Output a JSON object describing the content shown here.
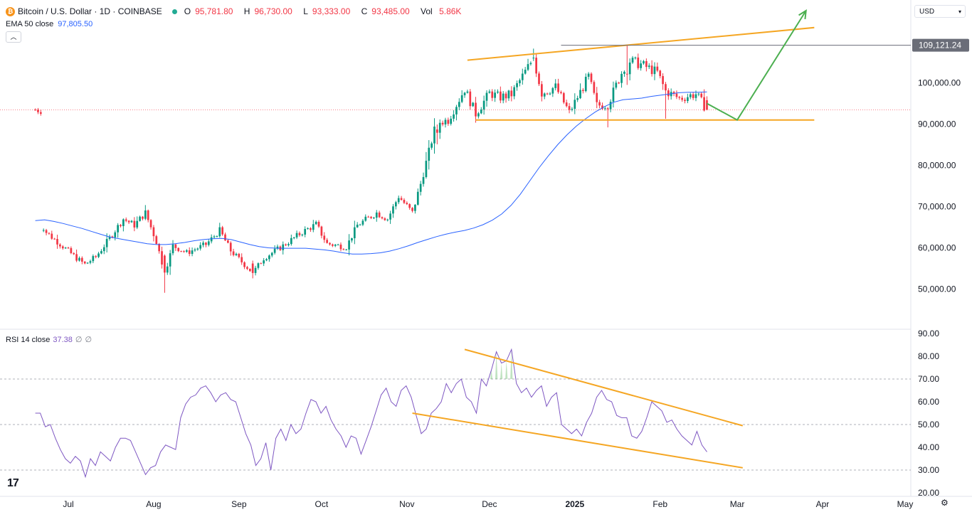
{
  "header": {
    "symbol_title": "Bitcoin / U.S. Dollar · 1D · COINBASE",
    "open_label": "O",
    "open": "95,781.80",
    "high_label": "H",
    "high": "96,730.00",
    "low_label": "L",
    "low": "93,333.00",
    "close_label": "C",
    "close": "93,485.00",
    "vol_label": "Vol",
    "vol": "5.86K",
    "ema_label": "EMA 50 close",
    "ema_value": "97,805.50",
    "currency": "USD",
    "rsi_label": "RSI 14 close",
    "rsi_value": "37.38",
    "rsi_extra1": "∅",
    "rsi_extra2": "∅",
    "logo_text": "17"
  },
  "colors": {
    "up": "#089981",
    "down": "#f23645",
    "ema": "#2962ff",
    "rsi": "#7e57c2",
    "trendline": "#f5a623",
    "projection": "#4caf50",
    "resistance": "#6a6d78"
  },
  "chart_data": {
    "type": "candlestick",
    "title": "Bitcoin / U.S. Dollar · 1D · COINBASE",
    "x_ticks": [
      "Jul",
      "Aug",
      "Sep",
      "Oct",
      "Nov",
      "Dec",
      "2025",
      "Feb",
      "Mar",
      "Apr",
      "May"
    ],
    "price_axis": {
      "ylim": [
        38000,
        119000
      ],
      "ticks": [
        "100,000.00",
        "90,000.00",
        "80,000.00",
        "70,000.00",
        "60,000.00",
        "50,000.00"
      ],
      "last_price_marker": "109,121.24",
      "last_price_marker_value": 109121.24,
      "resistance_label_hidden": "109,121.24"
    },
    "ema50_close": [
      66600,
      66800,
      66400,
      65900,
      65300,
      64700,
      64000,
      63300,
      62600,
      62200,
      61800,
      61400,
      61000,
      60800,
      60800,
      61000,
      61300,
      61700,
      62000,
      62200,
      62300,
      62000,
      61400,
      60800,
      60300,
      60000,
      59900,
      59900,
      59900,
      59900,
      59700,
      59500,
      59200,
      58800,
      58500,
      58500,
      58600,
      58800,
      59200,
      59800,
      60500,
      61300,
      62000,
      62700,
      63300,
      63800,
      64200,
      64800,
      65600,
      66700,
      68200,
      70300,
      73000,
      76200,
      79400,
      82300,
      85000,
      87400,
      89500,
      91300,
      92900,
      94200,
      95300,
      95900,
      96100,
      96300,
      96700,
      97000,
      97300,
      97600,
      97700,
      97700,
      97805.5
    ],
    "ema50_dates_step_days": 3.3,
    "candles_ohlc_sample": [
      {
        "date": "2024-06-22",
        "o": 64200,
        "h": 64700,
        "l": 63800,
        "c": 64300
      },
      {
        "date": "2024-08-05",
        "o": 58100,
        "h": 58400,
        "l": 49100,
        "c": 54000
      },
      {
        "date": "2024-09-06",
        "o": 56200,
        "h": 56900,
        "l": 52600,
        "c": 53900
      },
      {
        "date": "2024-11-12",
        "o": 88700,
        "h": 89900,
        "l": 85100,
        "c": 87900
      },
      {
        "date": "2024-12-17",
        "o": 106100,
        "h": 108300,
        "l": 105300,
        "c": 106100
      },
      {
        "date": "2025-01-20",
        "o": 102200,
        "h": 109121.24,
        "l": 99500,
        "c": 102100
      },
      {
        "date": "2025-02-18",
        "o": 95781.8,
        "h": 96730,
        "l": 93333,
        "c": 93485
      }
    ],
    "annotations": [
      {
        "type": "rising_resistance_line",
        "from": {
          "date": "2024-11-23",
          "price": 105500
        },
        "to": {
          "date": "2025-03-29",
          "price": 113400
        }
      },
      {
        "type": "horizontal_support",
        "price": 91000,
        "from": "2024-11-26",
        "to": "2025-03-29"
      },
      {
        "type": "horizontal_level",
        "price": 109121.24,
        "from": "2024-12-27",
        "to": "axis"
      },
      {
        "type": "projection_arrow",
        "points": [
          {
            "date": "2025-02-18",
            "price": 95000
          },
          {
            "date": "2025-03-01",
            "price": 91000
          },
          {
            "date": "2025-03-26",
            "price": 117500
          }
        ]
      }
    ],
    "rsi": {
      "label": "RSI 14 close",
      "ylim": [
        19,
        91
      ],
      "ticks": [
        "90.00",
        "80.00",
        "70.00",
        "60.00",
        "50.00",
        "40.00",
        "30.00",
        "20.00"
      ],
      "levels": [
        70,
        50,
        30
      ],
      "last": 37.38,
      "values": [
        55,
        55,
        49,
        50,
        44,
        39,
        35,
        33,
        36,
        34,
        27,
        35,
        32,
        38,
        36,
        34,
        40,
        44,
        44,
        43,
        38,
        33,
        28,
        31,
        32,
        38,
        41,
        40,
        39,
        53,
        59,
        62,
        63,
        66,
        67,
        64,
        60,
        63,
        64,
        61,
        60,
        53,
        46,
        41,
        32,
        35,
        42,
        30,
        44,
        48,
        43,
        50,
        46,
        48,
        55,
        61,
        60,
        55,
        58,
        52,
        48,
        45,
        40,
        45,
        44,
        37,
        43,
        49,
        56,
        63,
        66,
        60,
        58,
        65,
        67,
        62,
        54,
        46,
        48,
        55,
        57,
        60,
        68,
        64,
        68,
        70,
        62,
        60,
        55,
        70,
        67,
        74,
        82,
        77,
        78,
        83,
        68,
        64,
        66,
        62,
        65,
        67,
        58,
        62,
        64,
        50,
        48,
        46,
        48,
        45,
        51,
        55,
        62,
        65,
        61,
        60,
        54,
        53,
        53,
        45,
        44,
        47,
        53,
        60,
        58,
        56,
        51,
        52,
        48,
        45,
        43,
        41,
        47,
        41,
        38
      ]
    },
    "rsi_trendlines": [
      {
        "from": {
          "date": "2024-11-22",
          "value": 83
        },
        "to": {
          "date": "2025-03-03",
          "value": 49.5
        }
      },
      {
        "from": {
          "date": "2024-11-03",
          "value": 55
        },
        "to": {
          "date": "2025-03-03",
          "value": 31
        }
      }
    ]
  }
}
